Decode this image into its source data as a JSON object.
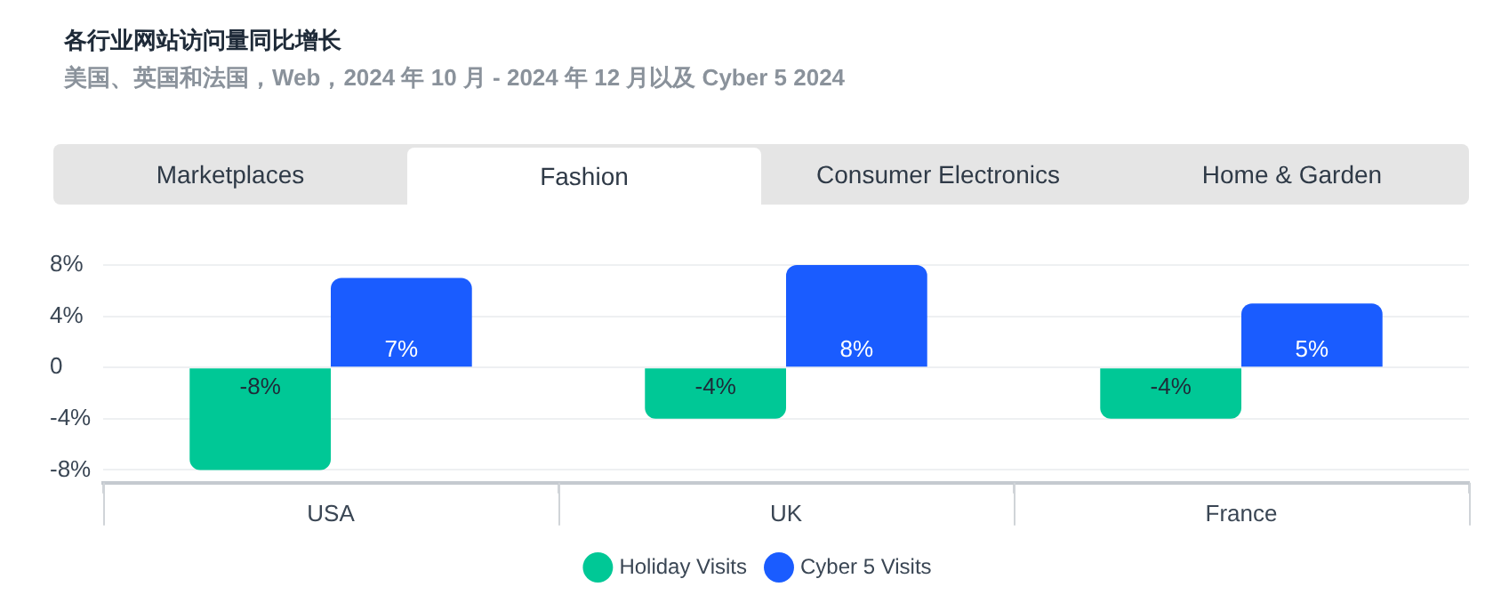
{
  "chart_data": {
    "type": "bar",
    "title": "各行业网站访问量同比增长",
    "subtitle": "美国、英国和法国，Web，2024 年 10 月 - 2024 年 12 月以及 Cyber 5 2024",
    "annotations": [
      "Marketplaces",
      "Fashion",
      "Consumer Electronics",
      "Home & Garden"
    ],
    "categories": [
      "USA",
      "UK",
      "France"
    ],
    "series": [
      {
        "name": "Holiday Visits",
        "color": "#00c896",
        "values": [
          -8,
          -4,
          -4
        ],
        "value_labels": [
          "-8%",
          "-4%",
          "-4%"
        ]
      },
      {
        "name": "Cyber 5 Visits",
        "color": "#1a5cff",
        "values": [
          7,
          8,
          5
        ],
        "value_labels": [
          "7%",
          "8%",
          "5%"
        ]
      }
    ],
    "ylim": [
      -9,
      8
    ],
    "yticks": [
      {
        "value": 8,
        "label": "8%"
      },
      {
        "value": 4,
        "label": "4%"
      },
      0,
      {
        "value": -4,
        "label": "-4%"
      },
      {
        "value": -8,
        "label": "-8%"
      }
    ],
    "grid": "y",
    "legend": "bottom"
  }
}
